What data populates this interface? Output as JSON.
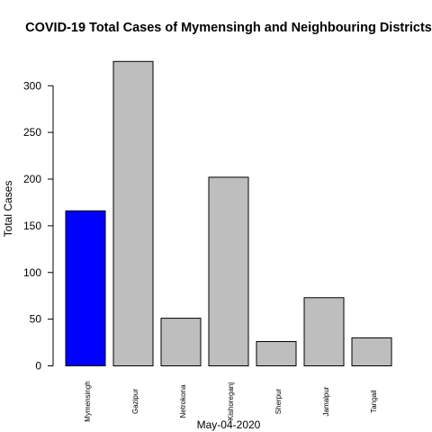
{
  "chart_data": {
    "type": "bar",
    "title": "COVID-19 Total Cases of Mymensingh and Neighbouring Districts",
    "xlabel": "May-04-2020",
    "ylabel": "Total Cases",
    "categories": [
      "Mymensingh",
      "Gazipur",
      "Netrokona",
      "Kishoreganj",
      "Sherpur",
      "Jamalpur",
      "Tangail"
    ],
    "values": [
      166,
      326,
      51,
      202,
      26,
      73,
      30
    ],
    "colors": [
      "#0000ff",
      "#bebebe",
      "#bebebe",
      "#bebebe",
      "#bebebe",
      "#bebebe",
      "#bebebe"
    ],
    "yticks": [
      0,
      50,
      100,
      150,
      200,
      250,
      300
    ],
    "ylim": [
      0,
      340
    ],
    "grid": false,
    "legend": "none"
  }
}
